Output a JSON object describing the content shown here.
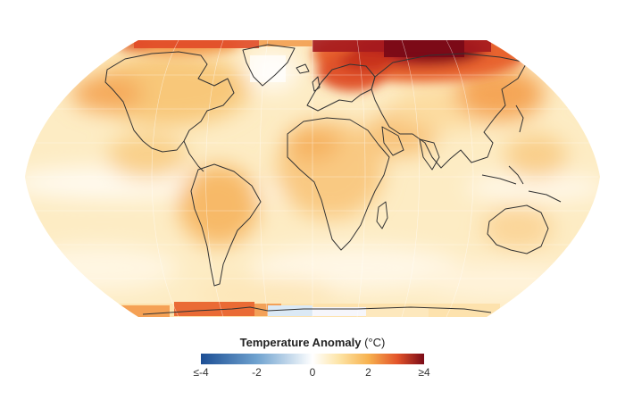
{
  "legend": {
    "title": "Temperature Anomaly",
    "unit": "(°C)",
    "ticks": [
      "≤-4",
      "-2",
      "0",
      "2",
      "≥4"
    ],
    "range": [
      -4,
      4
    ],
    "colors": [
      "#1c4e94",
      "#6fa2cf",
      "#ffffff",
      "#fde4a6",
      "#f7b24f",
      "#e3542a",
      "#7a0a17"
    ]
  },
  "map": {
    "projection": "Robinson",
    "ocean_base_color": "#fdeec9",
    "coastline_color": "#333333",
    "hotspots": [
      {
        "region": "Siberia / Northern Eurasia",
        "anomaly": 4
      },
      {
        "region": "Northern Europe",
        "anomaly": 3
      },
      {
        "region": "Arctic (Greenland Sea)",
        "anomaly": 2.5
      },
      {
        "region": "Northern Canada",
        "anomaly": 2
      },
      {
        "region": "Antarctic Peninsula",
        "anomaly": 2
      },
      {
        "region": "Eastern Pacific",
        "anomaly": 0
      },
      {
        "region": "Greenland interior",
        "anomaly": 0
      },
      {
        "region": "East Antarctica edge",
        "anomaly": -0.5
      }
    ]
  }
}
